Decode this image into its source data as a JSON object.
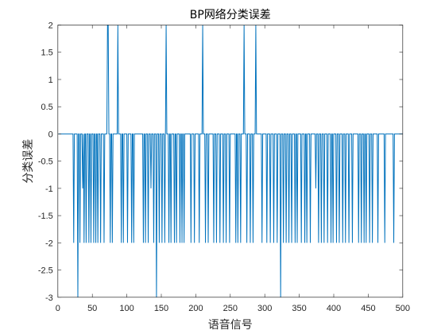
{
  "chart_data": {
    "type": "line",
    "title": "BP网络分类误差",
    "xlabel": "语音信号",
    "ylabel": "分类误差",
    "xlim": [
      0,
      500
    ],
    "ylim": [
      -3,
      2
    ],
    "xticks": [
      0,
      50,
      100,
      150,
      200,
      250,
      300,
      350,
      400,
      450,
      500
    ],
    "yticks": [
      2,
      1.5,
      1,
      0.5,
      0,
      -0.5,
      -1,
      -1.5,
      -2,
      -2.5,
      -3
    ],
    "grid": false,
    "legend": false,
    "series": [
      {
        "color": "#0072BD",
        "values": [
          0,
          0,
          0,
          0,
          0,
          0,
          0,
          0,
          0,
          0,
          0,
          0,
          0,
          0,
          0,
          0,
          0,
          0,
          0,
          0,
          0,
          0,
          -2,
          0,
          0,
          0,
          0,
          0,
          -3,
          0,
          0,
          -2,
          0,
          0,
          0,
          -1,
          0,
          -2,
          0,
          0,
          -2,
          0,
          0,
          0,
          -2,
          0,
          0,
          -2,
          0,
          0,
          0,
          -2,
          0,
          0,
          -2,
          0,
          0,
          -2,
          0,
          0,
          0,
          -2,
          0,
          0,
          0,
          0,
          -2,
          0,
          0,
          0,
          0,
          2,
          2,
          0,
          0,
          -2,
          0,
          0,
          -2,
          0,
          0,
          0,
          0,
          0,
          0,
          0,
          2,
          0,
          0,
          0,
          0,
          -2,
          0,
          0,
          -2,
          0,
          0,
          0,
          0,
          0,
          -2,
          0,
          0,
          0,
          0,
          0,
          -2,
          0,
          0,
          -2,
          0,
          0,
          0,
          0,
          0,
          0,
          0,
          0,
          0,
          0,
          0,
          0,
          0,
          -2,
          0,
          0,
          -2,
          0,
          0,
          0,
          -2,
          0,
          0,
          0,
          -1,
          0,
          0,
          0,
          -2,
          0,
          0,
          0,
          -3,
          0,
          0,
          0,
          -2,
          0,
          0,
          0,
          -2,
          0,
          0,
          0,
          -2,
          0,
          2,
          0,
          0,
          0,
          -2,
          0,
          0,
          -2,
          0,
          0,
          0,
          0,
          -2,
          0,
          0,
          -2,
          0,
          0,
          0,
          0,
          -2,
          0,
          0,
          -2,
          0,
          0,
          -2,
          0,
          0,
          0,
          0,
          0,
          0,
          0,
          0,
          0,
          -2,
          0,
          0,
          0,
          0,
          -2,
          0,
          0,
          0,
          0,
          0,
          0,
          -2,
          0,
          0,
          0,
          0,
          2,
          0,
          0,
          0,
          -2,
          0,
          0,
          0,
          -2,
          0,
          0,
          0,
          0,
          0,
          0,
          0,
          -2,
          0,
          0,
          0,
          -2,
          0,
          0,
          0,
          0,
          -2,
          0,
          0,
          0,
          0,
          -2,
          0,
          0,
          0,
          -2,
          0,
          0,
          0,
          0,
          -2,
          0,
          0,
          0,
          0,
          0,
          0,
          0,
          0,
          -2,
          0,
          0,
          -2,
          0,
          0,
          0,
          -2,
          0,
          0,
          0,
          0,
          2,
          0,
          0,
          0,
          -2,
          0,
          0,
          0,
          0,
          -2,
          0,
          0,
          0,
          -2,
          0,
          0,
          0,
          2,
          0,
          0,
          0,
          0,
          0,
          0,
          0,
          0,
          -2,
          0,
          0,
          0,
          0,
          0,
          0,
          -2,
          0,
          0,
          0,
          0,
          -2,
          0,
          0,
          0,
          0,
          -2,
          0,
          0,
          0,
          0,
          -2,
          0,
          0,
          0,
          0,
          -3,
          0,
          0,
          0,
          -2,
          0,
          0,
          0,
          -2,
          0,
          0,
          0,
          -2,
          0,
          0,
          0,
          -2,
          0,
          0,
          0,
          0,
          -2,
          0,
          0,
          -2,
          0,
          0,
          0,
          0,
          0,
          -2,
          0,
          0,
          0,
          0,
          -2,
          0,
          0,
          -2,
          0,
          0,
          0,
          0,
          -2,
          0,
          0,
          0,
          0,
          0,
          0,
          0,
          -1,
          0,
          0,
          0,
          -2,
          0,
          0,
          0,
          -2,
          0,
          0,
          0,
          -2,
          0,
          0,
          0,
          0,
          -2,
          0,
          0,
          0,
          0,
          -2,
          0,
          0,
          -2,
          0,
          0,
          0,
          0,
          -2,
          0,
          0,
          0,
          -2,
          0,
          0,
          0,
          0,
          -2,
          0,
          0,
          0,
          -2,
          0,
          0,
          0,
          0,
          -2,
          0,
          0,
          0,
          0,
          -2,
          0,
          0,
          0,
          0,
          0,
          0,
          0,
          0,
          -2,
          0,
          0,
          0,
          -2,
          0,
          0,
          0,
          -2,
          0,
          0,
          -2,
          0,
          0,
          0,
          0,
          -2,
          0,
          0,
          0,
          -2,
          0,
          0,
          0,
          0,
          0,
          0,
          0,
          -2,
          0,
          0,
          0,
          0,
          0,
          0,
          0,
          0,
          0,
          -2,
          0,
          0,
          0,
          0,
          0,
          0,
          0,
          0,
          0,
          0,
          0,
          0,
          -2,
          0,
          0,
          0,
          0,
          0,
          0,
          0,
          0,
          0,
          0,
          0,
          0,
          0
        ]
      }
    ]
  }
}
